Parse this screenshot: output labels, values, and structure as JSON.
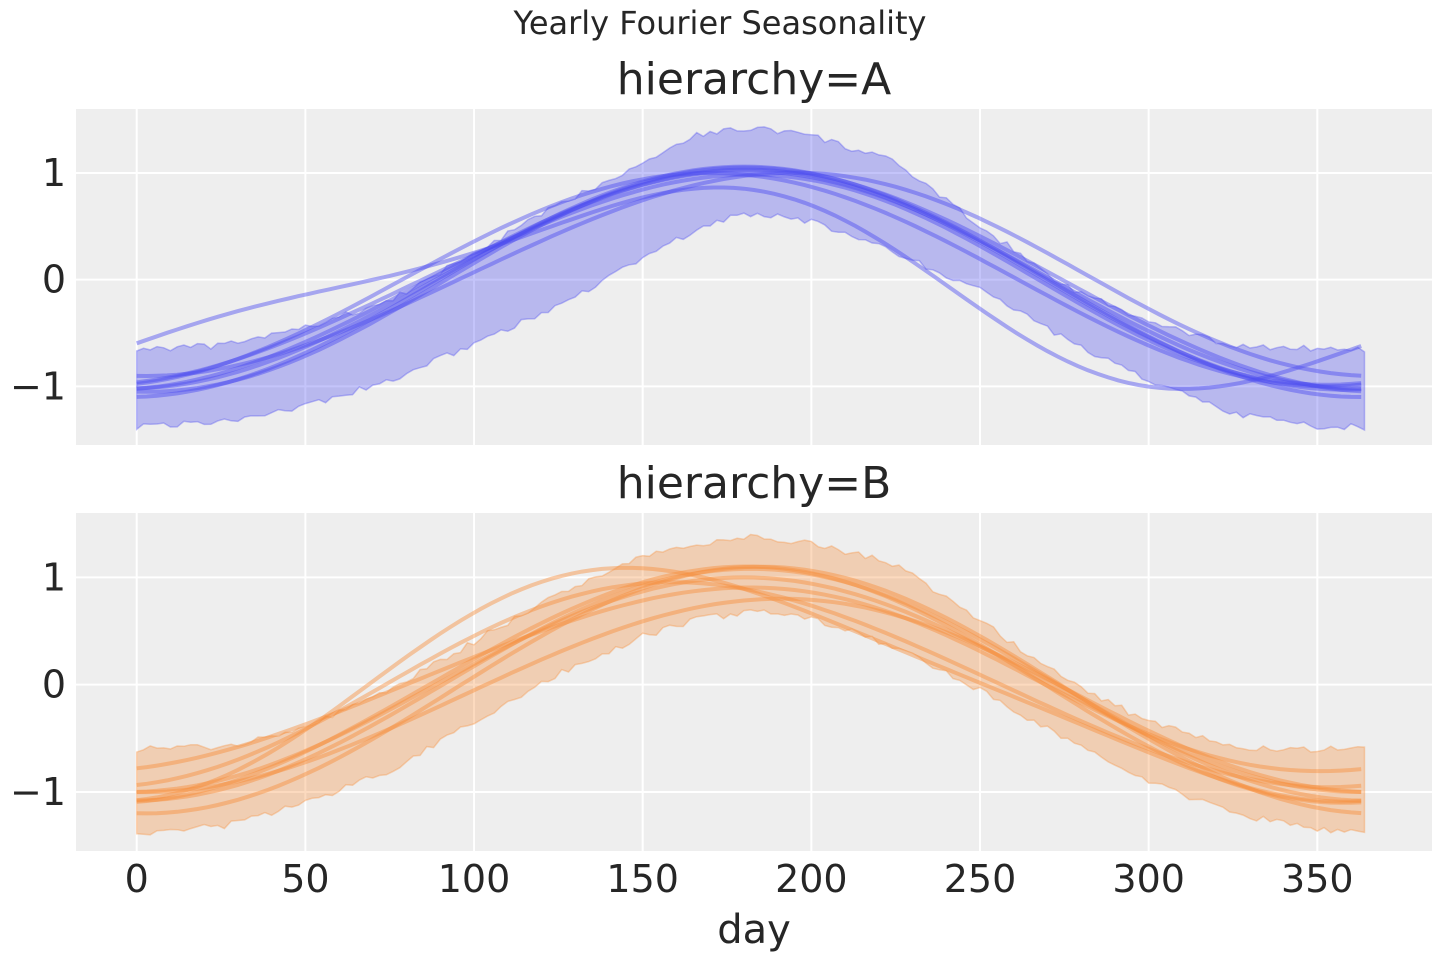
{
  "chart_data": {
    "type": "line",
    "title": "Yearly Fourier Seasonality",
    "xlabel": "day",
    "ylabel": "",
    "xlim": [
      -18,
      384
    ],
    "ylim": [
      -1.55,
      1.6
    ],
    "x_ticks": [
      0,
      50,
      100,
      150,
      200,
      250,
      300,
      350
    ],
    "y_ticks": [
      -1,
      0,
      1
    ],
    "y_tick_labels": [
      "−1",
      "0",
      "1"
    ],
    "grid": true,
    "sharex": true,
    "panels": [
      {
        "title": "hierarchy=A",
        "color": "#4C4CF0",
        "band": {
          "x": [
            0,
            25,
            50,
            75,
            100,
            125,
            150,
            165,
            175,
            185,
            200,
            225,
            250,
            275,
            300,
            325,
            350,
            365
          ],
          "lower": [
            -1.38,
            -1.33,
            -1.18,
            -0.95,
            -0.6,
            -0.25,
            0.2,
            0.45,
            0.58,
            0.62,
            0.55,
            0.25,
            -0.1,
            -0.55,
            -0.95,
            -1.25,
            -1.38,
            -1.38
          ],
          "upper": [
            -0.65,
            -0.62,
            -0.45,
            -0.2,
            0.25,
            0.7,
            1.1,
            1.35,
            1.4,
            1.42,
            1.35,
            1.1,
            0.5,
            -0.05,
            -0.4,
            -0.62,
            -0.65,
            -0.65
          ]
        },
        "series": [
          {
            "amp": 1.03,
            "phase": 178,
            "offset": 0.0,
            "skew": 0.05
          },
          {
            "amp": 0.98,
            "phase": 176,
            "offset": 0.0,
            "skew": 0.1
          },
          {
            "amp": 1.05,
            "phase": 183,
            "offset": 0.0,
            "skew": -0.05
          },
          {
            "amp": 1.0,
            "phase": 170,
            "offset": 0.0,
            "skew": 0.0
          },
          {
            "amp": 0.95,
            "phase": 190,
            "offset": 0.05,
            "skew": 0.08
          },
          {
            "amp": 1.08,
            "phase": 180,
            "offset": -0.02,
            "skew": 0.0
          },
          {
            "amp": 0.85,
            "phase": 150,
            "offset": -0.08,
            "skew": 0.45
          },
          {
            "amp": 1.02,
            "phase": 180,
            "offset": 0.0,
            "skew": 0.0
          }
        ]
      },
      {
        "title": "hierarchy=B",
        "color": "#F68F3C",
        "band": {
          "x": [
            0,
            25,
            50,
            75,
            100,
            125,
            150,
            165,
            175,
            185,
            200,
            225,
            250,
            275,
            300,
            325,
            350,
            365
          ],
          "lower": [
            -1.38,
            -1.32,
            -1.1,
            -0.8,
            -0.35,
            0.1,
            0.45,
            0.6,
            0.65,
            0.68,
            0.62,
            0.35,
            -0.05,
            -0.5,
            -0.9,
            -1.2,
            -1.35,
            -1.38
          ],
          "upper": [
            -0.6,
            -0.58,
            -0.4,
            -0.05,
            0.4,
            0.85,
            1.2,
            1.3,
            1.35,
            1.38,
            1.32,
            1.12,
            0.6,
            0.05,
            -0.35,
            -0.58,
            -0.6,
            -0.6
          ]
        },
        "series": [
          {
            "amp": 1.0,
            "phase": 180,
            "offset": 0.0,
            "skew": 0.0
          },
          {
            "amp": 1.1,
            "phase": 178,
            "offset": 0.0,
            "skew": 0.05
          },
          {
            "amp": 0.95,
            "phase": 165,
            "offset": 0.0,
            "skew": -0.1
          },
          {
            "amp": 1.15,
            "phase": 185,
            "offset": -0.05,
            "skew": 0.0
          },
          {
            "amp": 0.85,
            "phase": 175,
            "offset": 0.05,
            "skew": 0.1
          },
          {
            "amp": 1.05,
            "phase": 160,
            "offset": 0.0,
            "skew": -0.3
          },
          {
            "amp": 0.9,
            "phase": 188,
            "offset": -0.1,
            "skew": 0.05
          },
          {
            "amp": 1.08,
            "phase": 182,
            "offset": 0.0,
            "skew": 0.0
          }
        ]
      }
    ]
  }
}
